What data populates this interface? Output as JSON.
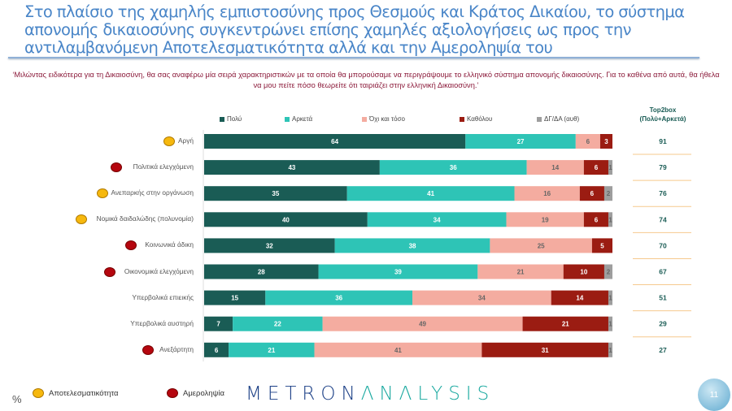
{
  "title": "Στο πλαίσιο της χαμηλής εμπιστοσύνης προς Θεσμούς και Κράτος Δικαίου, το σύστημα απονομής δικαιοσύνης συγκεντρώνει επίσης χαμηλές αξιολογήσεις ως προς την  αντιλαμβανόμενη Αποτελεσματικότητα αλλά και την Αμεροληψία του",
  "subtitle": "‘Μιλώντας ειδικότερα για τη Δικαιοσύνη, θα σας αναφέρω μία σειρά χαρακτηριστικών με τα οποία θα μπορούσαμε να περιγράψουμε το ελληνικό σύστημα απονομής δικαιοσύνης. Για το καθένα από αυτά, θα ήθελα να μου πείτε πόσο θεωρείτε ότι ταιριάζει στην ελληνική Δικαιοσύνη.’",
  "chart_data": {
    "type": "bar",
    "orientation": "horizontal-stacked-100",
    "unit": "%",
    "categories": [
      "Αργή",
      "Πολιτικά ελεγχόμενη",
      "Ανεπαρκής στην οργάνωση",
      "Νομικά δαιδαλώδης (πολυνομία)",
      "Κοινωνικά άδικη",
      "Οικονομικά ελεγχόμενη",
      "Υπερβολικά επιεικής",
      "Υπερβολικά αυστηρή",
      "Ανεξάρτητη"
    ],
    "category_markers": [
      "Αποτελεσματικότητα",
      "Αμεροληψία",
      "Αποτελεσματικότητα",
      "Αποτελεσματικότητα",
      "Αμεροληψία",
      "Αμεροληψία",
      "",
      "",
      "Αμεροληψία"
    ],
    "series": [
      {
        "name": "Πολύ",
        "color": "#1a5c55",
        "values": [
          64,
          43,
          35,
          40,
          32,
          28,
          15,
          7,
          6
        ]
      },
      {
        "name": "Αρκετά",
        "color": "#2ec4b6",
        "values": [
          27,
          36,
          41,
          34,
          38,
          39,
          36,
          22,
          21
        ]
      },
      {
        "name": "Όχι και τόσο",
        "color": "#f4aca0",
        "values": [
          6,
          14,
          16,
          19,
          25,
          21,
          34,
          49,
          41
        ]
      },
      {
        "name": "Καθόλου",
        "color": "#9b1c12",
        "values": [
          3,
          6,
          6,
          6,
          5,
          10,
          14,
          21,
          31
        ]
      },
      {
        "name": "ΔΓ/ΔΑ (αυθ)",
        "color": "#9e9e9e",
        "values": [
          0,
          1,
          2,
          1,
          0,
          2,
          1,
          1,
          1
        ]
      }
    ],
    "top2box_title": "Top2box (Πολύ+Αρκετά)",
    "top2box": [
      91,
      79,
      76,
      74,
      70,
      67,
      51,
      29,
      27
    ],
    "legend": "top",
    "xlim": [
      0,
      100
    ]
  },
  "marker_legend": [
    {
      "label": "Αποτελεσματικότητα",
      "color": "#f6b80e"
    },
    {
      "label": "Αμεροληψία",
      "color": "#b5060f"
    }
  ],
  "percent_symbol": "%",
  "logo": {
    "part1": "METRON",
    "part2": "ΛNΛLYSIS"
  },
  "page_number": "11"
}
